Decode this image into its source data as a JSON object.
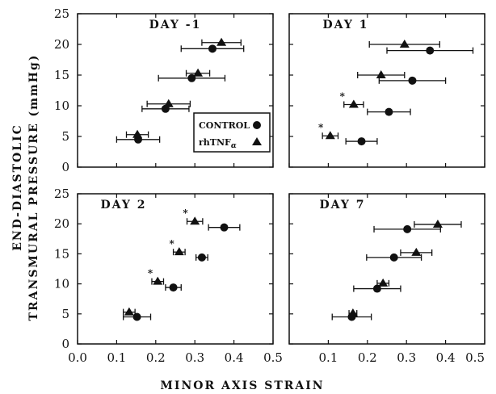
{
  "figure": {
    "ylabel_line1": "END-DIASTOLIC",
    "ylabel_line2": "TRANSMURAL PRESSURE (mmHg)",
    "xlabel": "MINOR AXIS STRAIN",
    "legend": {
      "control": "CONTROL",
      "rhtnf": "rhTNF",
      "rhtnf_sub": "α"
    },
    "significance_marker": "*",
    "x_ticks_left": [
      "0.0",
      "0.1",
      "0.2",
      "0.3",
      "0.4",
      "0.5"
    ],
    "x_ticks_right": [
      "0.1",
      "0.2",
      "0.3",
      "0.4",
      "0.5"
    ],
    "y_ticks": [
      "0",
      "5",
      "10",
      "15",
      "20",
      "25"
    ]
  },
  "chart_data": [
    {
      "type": "scatter",
      "title": "DAY -1",
      "xlim": [
        0,
        0.5
      ],
      "ylim": [
        0,
        25
      ],
      "series": [
        {
          "name": "CONTROL",
          "marker": "circle",
          "points": [
            {
              "x": 0.155,
              "y": 4.5,
              "xerr": 0.055
            },
            {
              "x": 0.225,
              "y": 9.5,
              "xerr": 0.06
            },
            {
              "x": 0.292,
              "y": 14.5,
              "xerr": 0.085
            },
            {
              "x": 0.345,
              "y": 19.3,
              "xerr": 0.08
            }
          ]
        },
        {
          "name": "rhTNFα",
          "marker": "triangle",
          "points": [
            {
              "x": 0.153,
              "y": 5.3,
              "xerr": 0.028
            },
            {
              "x": 0.233,
              "y": 10.3,
              "xerr": 0.055
            },
            {
              "x": 0.308,
              "y": 15.3,
              "xerr": 0.03
            },
            {
              "x": 0.368,
              "y": 20.3,
              "xerr": 0.05
            }
          ]
        }
      ]
    },
    {
      "type": "scatter",
      "title": "DAY 1",
      "xlim": [
        0,
        0.5
      ],
      "ylim": [
        0,
        25
      ],
      "series": [
        {
          "name": "CONTROL",
          "marker": "circle",
          "points": [
            {
              "x": 0.185,
              "y": 4.2,
              "xerr": 0.04
            },
            {
              "x": 0.255,
              "y": 9.0,
              "xerr": 0.055
            },
            {
              "x": 0.315,
              "y": 14.1,
              "xerr": 0.085
            },
            {
              "x": 0.36,
              "y": 19.0,
              "xerr": 0.11
            }
          ]
        },
        {
          "name": "rhTNFα",
          "marker": "triangle",
          "points": [
            {
              "x": 0.105,
              "y": 5.1,
              "xerr": 0.02,
              "significant": true
            },
            {
              "x": 0.165,
              "y": 10.2,
              "xerr": 0.025,
              "significant": true
            },
            {
              "x": 0.235,
              "y": 15.0,
              "xerr": 0.06
            },
            {
              "x": 0.295,
              "y": 20.0,
              "xerr": 0.09
            }
          ]
        }
      ]
    },
    {
      "type": "scatter",
      "title": "DAY 2",
      "xlim": [
        0,
        0.5
      ],
      "ylim": [
        0,
        25
      ],
      "series": [
        {
          "name": "CONTROL",
          "marker": "circle",
          "points": [
            {
              "x": 0.152,
              "y": 4.5,
              "xerr": 0.035
            },
            {
              "x": 0.245,
              "y": 9.4,
              "xerr": 0.02
            },
            {
              "x": 0.318,
              "y": 14.4,
              "xerr": 0.015
            },
            {
              "x": 0.375,
              "y": 19.4,
              "xerr": 0.04
            }
          ]
        },
        {
          "name": "rhTNFα",
          "marker": "triangle",
          "points": [
            {
              "x": 0.132,
              "y": 5.3,
              "xerr": 0.015
            },
            {
              "x": 0.205,
              "y": 10.4,
              "xerr": 0.015,
              "significant": true
            },
            {
              "x": 0.26,
              "y": 15.3,
              "xerr": 0.015,
              "significant": true
            },
            {
              "x": 0.3,
              "y": 20.4,
              "xerr": 0.02,
              "significant": true
            }
          ]
        }
      ]
    },
    {
      "type": "scatter",
      "title": "DAY 7",
      "xlim": [
        0,
        0.5
      ],
      "ylim": [
        0,
        25
      ],
      "series": [
        {
          "name": "CONTROL",
          "marker": "circle",
          "points": [
            {
              "x": 0.16,
              "y": 4.5,
              "xerr": 0.05
            },
            {
              "x": 0.225,
              "y": 9.2,
              "xerr": 0.06
            },
            {
              "x": 0.268,
              "y": 14.4,
              "xerr": 0.07
            },
            {
              "x": 0.302,
              "y": 19.1,
              "xerr": 0.085
            }
          ]
        },
        {
          "name": "rhTNFα",
          "marker": "triangle",
          "points": [
            {
              "x": 0.163,
              "y": 5.1,
              "xerr": 0.01
            },
            {
              "x": 0.24,
              "y": 10.1,
              "xerr": 0.015
            },
            {
              "x": 0.325,
              "y": 15.2,
              "xerr": 0.04
            },
            {
              "x": 0.38,
              "y": 19.9,
              "xerr": 0.06
            }
          ]
        }
      ]
    }
  ]
}
